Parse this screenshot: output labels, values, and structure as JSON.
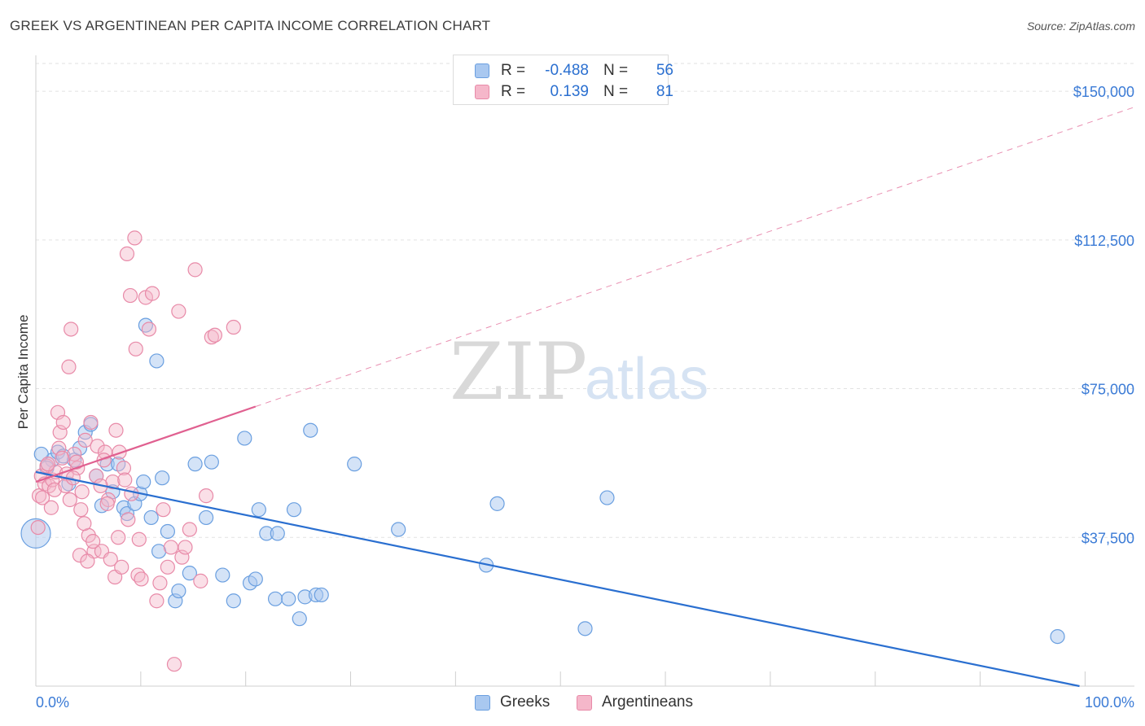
{
  "title": "GREEK VS ARGENTINEAN PER CAPITA INCOME CORRELATION CHART",
  "source": "Source: ZipAtlas.com",
  "watermark": {
    "zip": "ZIP",
    "atlas": "atlas"
  },
  "legend_top": [
    {
      "r_label": "R =",
      "r_value": "-0.488",
      "n_label": "N =",
      "n_value": "56"
    },
    {
      "r_label": "R =",
      "r_value": "0.139",
      "n_label": "N =",
      "n_value": "81"
    }
  ],
  "legend_bottom": [
    {
      "label": "Greeks"
    },
    {
      "label": "Argentineans"
    }
  ],
  "colors": {
    "greeks_fill": "#a9c8f0",
    "greeks_stroke": "#6a9fe0",
    "greeks_line": "#2a6fd0",
    "arg_fill": "#f5b7ca",
    "arg_stroke": "#e88aa8",
    "arg_line": "#e06090",
    "grid": "#e2e2e2",
    "axis_label": "#3b7bd6"
  },
  "chart_data": {
    "type": "scatter",
    "title": "GREEK VS ARGENTINEAN PER CAPITA INCOME CORRELATION CHART",
    "xlabel": "",
    "ylabel": "Per Capita Income",
    "xlim": [
      0,
      100
    ],
    "ylim": [
      0,
      157000
    ],
    "x_tick_labels": [
      "0.0%",
      "100.0%"
    ],
    "y_ticks": [
      37500,
      75000,
      112500,
      150000
    ],
    "y_tick_labels": [
      "$37,500",
      "$75,000",
      "$112,500",
      "$150,000"
    ],
    "series": [
      {
        "name": "Greeks",
        "R": -0.488,
        "N": 56,
        "trend": {
          "x": [
            0,
            95
          ],
          "y": [
            54000,
            0
          ]
        },
        "points": [
          [
            0,
            38500
          ],
          [
            1.5,
            57000
          ],
          [
            2,
            59000
          ],
          [
            2.5,
            58000
          ],
          [
            3.5,
            57000
          ],
          [
            4,
            60000
          ],
          [
            4.5,
            64000
          ],
          [
            5,
            66000
          ],
          [
            5.5,
            53000
          ],
          [
            6.5,
            56000
          ],
          [
            7,
            49000
          ],
          [
            7.5,
            56000
          ],
          [
            8,
            45000
          ],
          [
            8.3,
            43500
          ],
          [
            9,
            46000
          ],
          [
            9.5,
            48500
          ],
          [
            10,
            91000
          ],
          [
            10.5,
            42500
          ],
          [
            11,
            82000
          ],
          [
            11.2,
            34000
          ],
          [
            11.5,
            52500
          ],
          [
            12,
            39000
          ],
          [
            12.7,
            21500
          ],
          [
            13,
            24000
          ],
          [
            14,
            28500
          ],
          [
            14.5,
            56000
          ],
          [
            15.5,
            42500
          ],
          [
            16,
            56500
          ],
          [
            17,
            28000
          ],
          [
            18,
            21500
          ],
          [
            19,
            62500
          ],
          [
            19.5,
            26000
          ],
          [
            20,
            27000
          ],
          [
            20.3,
            44500
          ],
          [
            21,
            38500
          ],
          [
            21.8,
            22000
          ],
          [
            22,
            38500
          ],
          [
            23,
            22000
          ],
          [
            23.5,
            44500
          ],
          [
            24,
            17000
          ],
          [
            24.5,
            22500
          ],
          [
            25,
            64500
          ],
          [
            25.5,
            23000
          ],
          [
            26,
            23000
          ],
          [
            29,
            56000
          ],
          [
            33,
            39500
          ],
          [
            41,
            30500
          ],
          [
            42,
            46000
          ],
          [
            50,
            14500
          ],
          [
            52,
            47500
          ],
          [
            93,
            12500
          ],
          [
            0.5,
            58500
          ],
          [
            1,
            55000
          ],
          [
            3,
            51000
          ],
          [
            6,
            45500
          ],
          [
            9.8,
            51500
          ]
        ]
      },
      {
        "name": "Argentineans",
        "R": 0.139,
        "N": 81,
        "trend": {
          "x": [
            0,
            20
          ],
          "y": [
            51500,
            70500
          ]
        },
        "trend_dashed": {
          "x": [
            20,
            100
          ],
          "y": [
            70500,
            146000
          ]
        },
        "points": [
          [
            0.3,
            48000
          ],
          [
            0.5,
            53000
          ],
          [
            0.8,
            51000
          ],
          [
            1,
            55500
          ],
          [
            1.2,
            50500
          ],
          [
            1.5,
            52000
          ],
          [
            1.8,
            54000
          ],
          [
            2,
            69000
          ],
          [
            2.2,
            64000
          ],
          [
            2.5,
            66500
          ],
          [
            2.8,
            53500
          ],
          [
            3,
            80500
          ],
          [
            3.2,
            90000
          ],
          [
            3.5,
            58500
          ],
          [
            3.8,
            55000
          ],
          [
            4,
            33000
          ],
          [
            4.2,
            49000
          ],
          [
            4.5,
            62000
          ],
          [
            4.8,
            38000
          ],
          [
            5,
            66500
          ],
          [
            5.3,
            34000
          ],
          [
            5.6,
            60500
          ],
          [
            6,
            34000
          ],
          [
            6.3,
            59000
          ],
          [
            6.6,
            47000
          ],
          [
            7,
            51500
          ],
          [
            7.3,
            64500
          ],
          [
            7.6,
            59000
          ],
          [
            8,
            55000
          ],
          [
            8.3,
            109000
          ],
          [
            8.6,
            98500
          ],
          [
            9,
            113000
          ],
          [
            9.3,
            28000
          ],
          [
            9.6,
            27000
          ],
          [
            10,
            98000
          ],
          [
            10.3,
            90000
          ],
          [
            10.6,
            99000
          ],
          [
            11,
            21500
          ],
          [
            11.3,
            26000
          ],
          [
            11.6,
            44500
          ],
          [
            12,
            30000
          ],
          [
            12.3,
            35000
          ],
          [
            12.6,
            5500
          ],
          [
            13,
            94500
          ],
          [
            13.3,
            32500
          ],
          [
            13.6,
            35000
          ],
          [
            14,
            39500
          ],
          [
            14.5,
            105000
          ],
          [
            15,
            26500
          ],
          [
            15.5,
            48000
          ],
          [
            16,
            88000
          ],
          [
            16.3,
            88500
          ],
          [
            18,
            90500
          ],
          [
            0.2,
            40000
          ],
          [
            0.6,
            47500
          ],
          [
            1.1,
            56000
          ],
          [
            1.4,
            45000
          ],
          [
            1.7,
            49500
          ],
          [
            2.1,
            60000
          ],
          [
            2.4,
            57500
          ],
          [
            2.7,
            50500
          ],
          [
            3.1,
            47000
          ],
          [
            3.4,
            52500
          ],
          [
            3.7,
            56500
          ],
          [
            4.1,
            44500
          ],
          [
            4.4,
            41000
          ],
          [
            4.7,
            31500
          ],
          [
            5.2,
            36500
          ],
          [
            5.5,
            53000
          ],
          [
            5.9,
            50500
          ],
          [
            6.2,
            57000
          ],
          [
            6.5,
            46000
          ],
          [
            6.8,
            32000
          ],
          [
            7.2,
            27500
          ],
          [
            7.5,
            37500
          ],
          [
            7.8,
            30000
          ],
          [
            8.1,
            52000
          ],
          [
            8.4,
            42000
          ],
          [
            8.7,
            48500
          ],
          [
            9.1,
            85000
          ],
          [
            9.4,
            37000
          ]
        ]
      }
    ]
  }
}
